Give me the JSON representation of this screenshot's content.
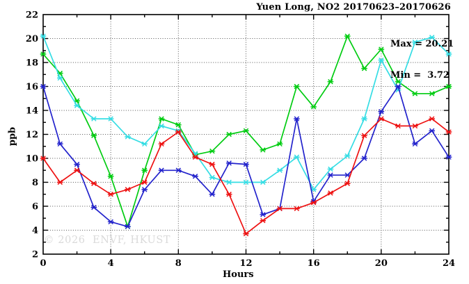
{
  "chart_data": {
    "type": "line",
    "title": "Yuen Long, NO2 20170623–20170626",
    "xlabel": "Hours",
    "ylabel": "ppb",
    "xlim": [
      0,
      24
    ],
    "ylim": [
      2,
      22
    ],
    "grid": "dotted",
    "legend_position": "none",
    "grid_x": [
      4,
      8,
      12,
      16,
      20
    ],
    "grid_y": [
      4,
      6,
      8,
      10,
      12,
      14,
      16,
      18,
      20
    ],
    "x_ticks_labeled": [
      0,
      4,
      8,
      12,
      16,
      20,
      24
    ],
    "x_ticks_minor": [
      2,
      6,
      10,
      14,
      18,
      22
    ],
    "y_ticks_labeled": [
      2,
      4,
      6,
      8,
      10,
      12,
      14,
      16,
      18,
      20,
      22
    ],
    "x": [
      0,
      1,
      2,
      3,
      4,
      5,
      6,
      7,
      8,
      9,
      10,
      11,
      12,
      13,
      14,
      15,
      16,
      17,
      18,
      19,
      20,
      21,
      22,
      23,
      24
    ],
    "series": [
      {
        "name": "green-series",
        "color": "#00cc11",
        "values": [
          18.7,
          17.1,
          14.8,
          11.9,
          8.5,
          4.3,
          9.0,
          13.3,
          12.8,
          10.3,
          10.6,
          12.0,
          12.3,
          10.7,
          11.2,
          16.0,
          14.3,
          16.4,
          20.2,
          17.5,
          19.1,
          16.4,
          15.4,
          15.4,
          16.0
        ]
      },
      {
        "name": "cyan-series",
        "color": "#35dde4",
        "values": [
          20.2,
          16.7,
          14.4,
          13.3,
          13.3,
          11.8,
          11.2,
          12.7,
          12.3,
          10.4,
          8.4,
          8.0,
          8.0,
          8.0,
          9.0,
          10.1,
          7.4,
          9.1,
          10.2,
          13.3,
          18.2,
          15.7,
          19.7,
          20.1,
          18.7
        ]
      },
      {
        "name": "blue-series",
        "color": "#2323cc",
        "values": [
          16.0,
          11.2,
          9.5,
          5.9,
          4.7,
          4.3,
          7.4,
          9.0,
          9.0,
          8.5,
          7.0,
          9.6,
          9.5,
          5.3,
          5.8,
          13.3,
          6.4,
          8.6,
          8.6,
          10.0,
          13.9,
          16.0,
          11.2,
          12.3,
          10.1
        ]
      },
      {
        "name": "red-series",
        "color": "#ee1111",
        "values": [
          10.0,
          8.0,
          9.0,
          7.9,
          7.0,
          7.4,
          8.0,
          11.2,
          12.2,
          10.1,
          9.5,
          7.0,
          3.7,
          4.8,
          5.8,
          5.8,
          6.3,
          7.1,
          7.9,
          11.9,
          13.3,
          12.7,
          12.7,
          13.3,
          12.2
        ]
      }
    ],
    "annotations": {
      "max": "Max = 20.21",
      "min": "Min =  3.72"
    },
    "max_value": 20.21,
    "min_value": 3.72
  },
  "watermark": {
    "text": "© 2026  ENVF, HKUST"
  },
  "style": {
    "grid_color": "#555555",
    "axis_color": "#000000",
    "watermark_color": "#dadada"
  }
}
